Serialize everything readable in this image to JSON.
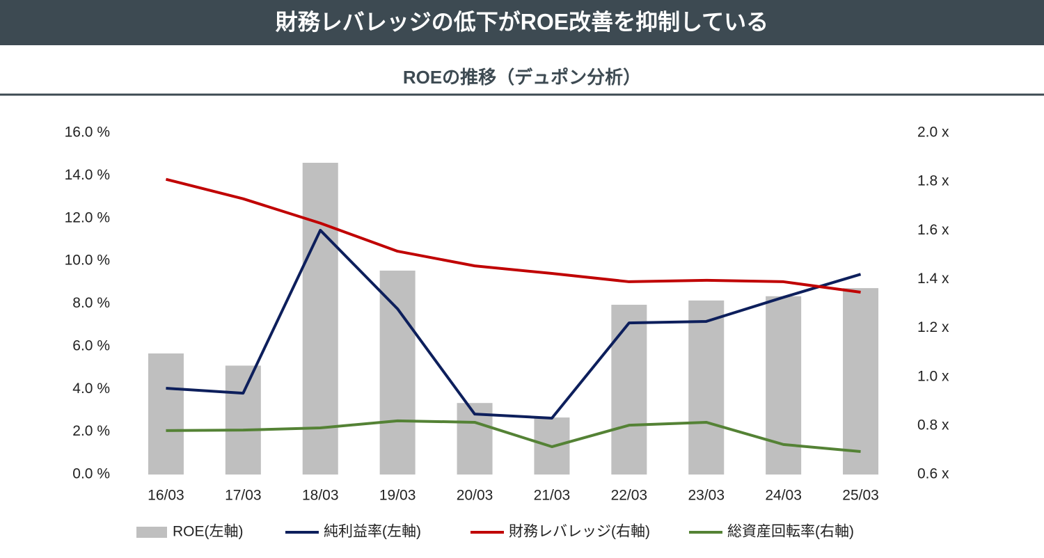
{
  "chart_data": {
    "type": "combo",
    "title": "財務レバレッジの低下がROE改善を抑制している",
    "subtitle": "ROEの推移（デュポン分析）",
    "categories": [
      "16/03",
      "17/03",
      "18/03",
      "19/03",
      "20/03",
      "21/03",
      "22/03",
      "23/03",
      "24/03",
      "25/03"
    ],
    "ylim": [
      0,
      16
    ],
    "yticks": [
      {
        "value": 0,
        "label": "0.0 %"
      },
      {
        "value": 2,
        "label": "2.0 %"
      },
      {
        "value": 4,
        "label": "4.0 %"
      },
      {
        "value": 6,
        "label": "6.0 %"
      },
      {
        "value": 8,
        "label": "8.0 %"
      },
      {
        "value": 10,
        "label": "10.0 %"
      },
      {
        "value": 12,
        "label": "12.0 %"
      },
      {
        "value": 14,
        "label": "14.0 %"
      },
      {
        "value": 16,
        "label": "16.0 %"
      }
    ],
    "y2lim": [
      0.6,
      2.0
    ],
    "y2ticks": [
      {
        "value": 0.6,
        "label": "0.6 x"
      },
      {
        "value": 0.8,
        "label": "0.8 x"
      },
      {
        "value": 1.0,
        "label": "1.0 x"
      },
      {
        "value": 1.2,
        "label": "1.2 x"
      },
      {
        "value": 1.4,
        "label": "1.4 x"
      },
      {
        "value": 1.6,
        "label": "1.6 x"
      },
      {
        "value": 1.8,
        "label": "1.8 x"
      },
      {
        "value": 2.0,
        "label": "2.0 x"
      }
    ],
    "grid": false,
    "legend": "bottom",
    "series": [
      {
        "name": "ROE(左軸)",
        "type": "bar",
        "color": "#bfbfbf",
        "values": [
          5.67,
          5.1,
          14.6,
          9.55,
          3.35,
          2.67,
          7.95,
          8.15,
          8.35,
          8.73
        ]
      },
      {
        "name": "純利益率(左軸)",
        "type": "line",
        "color": "#0d1f5c",
        "values": [
          4.04,
          3.81,
          11.44,
          7.76,
          2.83,
          2.64,
          7.1,
          7.17,
          8.3,
          9.38
        ]
      },
      {
        "name": "財務レバレッジ(右軸)",
        "type": "line",
        "axis": "y2",
        "color": "#c00000",
        "values": [
          1.81,
          1.73,
          1.63,
          1.515,
          1.455,
          1.424,
          1.39,
          1.396,
          1.39,
          1.347
        ]
      },
      {
        "name": "総資産回転率(右軸)",
        "type": "line",
        "axis": "y2",
        "color": "#548235",
        "values": [
          0.78,
          0.782,
          0.791,
          0.82,
          0.814,
          0.714,
          0.802,
          0.814,
          0.723,
          0.694
        ]
      }
    ]
  }
}
